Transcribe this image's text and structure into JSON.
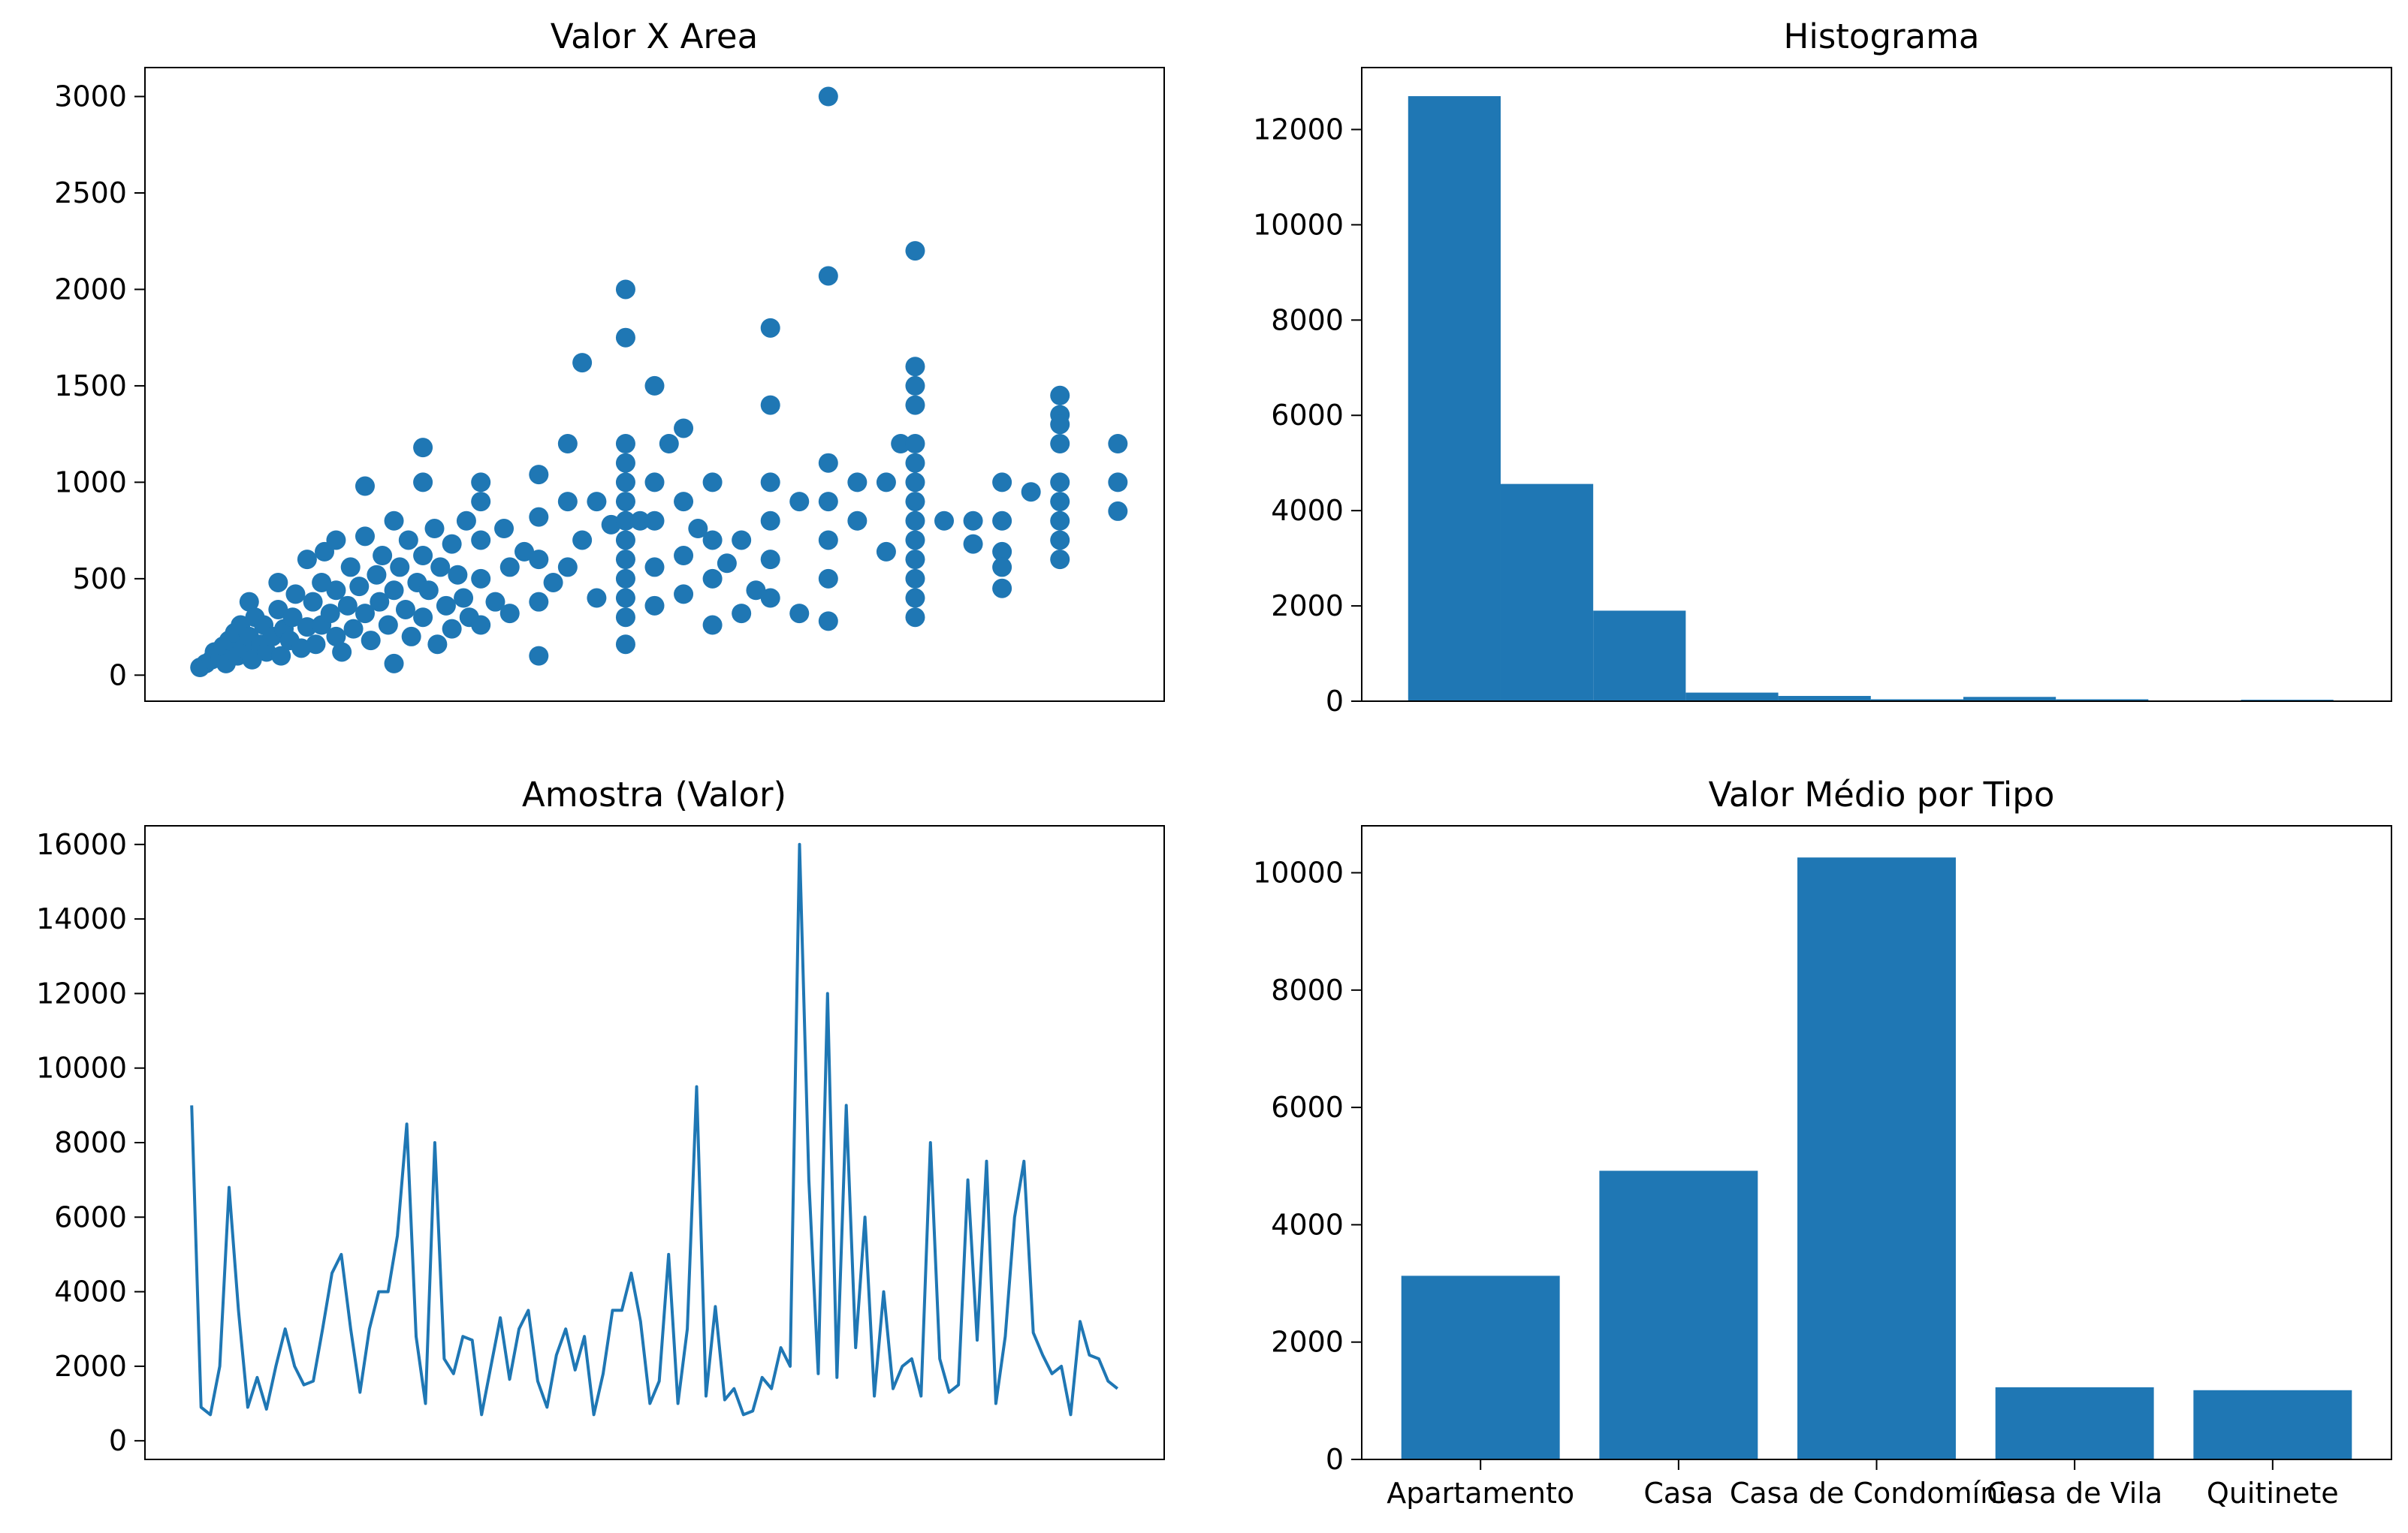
{
  "figure": {
    "background": "#ffffff",
    "accent": "#1f77b4"
  },
  "chart_data": [
    {
      "id": "scatter",
      "type": "scatter",
      "title": "Valor X Area",
      "xlabel": "",
      "ylabel": "",
      "xlim": [
        -1600,
        33600
      ],
      "ylim": [
        -135,
        3150
      ],
      "xticks": [
        0,
        5000,
        10000,
        15000,
        20000,
        25000,
        30000
      ],
      "yticks": [
        0,
        500,
        1000,
        1500,
        2000,
        2500,
        3000
      ],
      "color": "#1f77b4",
      "points": [
        [
          300,
          40
        ],
        [
          500,
          60
        ],
        [
          700,
          80
        ],
        [
          800,
          120
        ],
        [
          1000,
          90
        ],
        [
          1100,
          150
        ],
        [
          1200,
          60
        ],
        [
          1300,
          180
        ],
        [
          1500,
          220
        ],
        [
          1600,
          100
        ],
        [
          1700,
          260
        ],
        [
          1800,
          140
        ],
        [
          2000,
          200
        ],
        [
          2000,
          380
        ],
        [
          2100,
          80
        ],
        [
          2200,
          300
        ],
        [
          2400,
          160
        ],
        [
          2500,
          260
        ],
        [
          2600,
          120
        ],
        [
          2800,
          200
        ],
        [
          3000,
          340
        ],
        [
          3000,
          480
        ],
        [
          3100,
          100
        ],
        [
          3200,
          240
        ],
        [
          3400,
          180
        ],
        [
          3500,
          300
        ],
        [
          3600,
          420
        ],
        [
          3800,
          140
        ],
        [
          4000,
          250
        ],
        [
          4000,
          600
        ],
        [
          4200,
          380
        ],
        [
          4300,
          160
        ],
        [
          4500,
          480
        ],
        [
          4500,
          260
        ],
        [
          4600,
          640
        ],
        [
          4800,
          320
        ],
        [
          5000,
          200
        ],
        [
          5000,
          440
        ],
        [
          5000,
          700
        ],
        [
          5200,
          120
        ],
        [
          5400,
          360
        ],
        [
          5500,
          560
        ],
        [
          5600,
          240
        ],
        [
          5800,
          460
        ],
        [
          6000,
          320
        ],
        [
          6000,
          720
        ],
        [
          6000,
          980
        ],
        [
          6200,
          180
        ],
        [
          6400,
          520
        ],
        [
          6500,
          380
        ],
        [
          6600,
          620
        ],
        [
          6800,
          260
        ],
        [
          7000,
          440
        ],
        [
          7000,
          800
        ],
        [
          7000,
          60
        ],
        [
          7200,
          560
        ],
        [
          7400,
          340
        ],
        [
          7500,
          700
        ],
        [
          7600,
          200
        ],
        [
          7800,
          480
        ],
        [
          8000,
          620
        ],
        [
          8000,
          1180
        ],
        [
          8000,
          1000
        ],
        [
          8000,
          300
        ],
        [
          8200,
          440
        ],
        [
          8400,
          760
        ],
        [
          8500,
          160
        ],
        [
          8600,
          560
        ],
        [
          8800,
          360
        ],
        [
          9000,
          680
        ],
        [
          9000,
          240
        ],
        [
          9200,
          520
        ],
        [
          9400,
          400
        ],
        [
          9500,
          800
        ],
        [
          9600,
          300
        ],
        [
          10000,
          1000
        ],
        [
          10000,
          900
        ],
        [
          10000,
          700
        ],
        [
          10000,
          500
        ],
        [
          10000,
          260
        ],
        [
          10500,
          380
        ],
        [
          10800,
          760
        ],
        [
          11000,
          560
        ],
        [
          11000,
          320
        ],
        [
          11500,
          640
        ],
        [
          12000,
          1040
        ],
        [
          12000,
          820
        ],
        [
          12000,
          600
        ],
        [
          12000,
          380
        ],
        [
          12000,
          100
        ],
        [
          12500,
          480
        ],
        [
          13000,
          1200
        ],
        [
          13000,
          900
        ],
        [
          13000,
          560
        ],
        [
          13500,
          1620
        ],
        [
          13500,
          700
        ],
        [
          14000,
          900
        ],
        [
          14000,
          400
        ],
        [
          14500,
          780
        ],
        [
          15000,
          2000
        ],
        [
          15000,
          1750
        ],
        [
          15000,
          1200
        ],
        [
          15000,
          1100
        ],
        [
          15000,
          1000
        ],
        [
          15000,
          900
        ],
        [
          15000,
          800
        ],
        [
          15000,
          700
        ],
        [
          15000,
          600
        ],
        [
          15000,
          500
        ],
        [
          15000,
          400
        ],
        [
          15000,
          300
        ],
        [
          15000,
          160
        ],
        [
          15500,
          800
        ],
        [
          16000,
          1500
        ],
        [
          16000,
          1000
        ],
        [
          16000,
          800
        ],
        [
          16000,
          560
        ],
        [
          16000,
          360
        ],
        [
          16500,
          1200
        ],
        [
          17000,
          1280
        ],
        [
          17000,
          900
        ],
        [
          17000,
          620
        ],
        [
          17000,
          420
        ],
        [
          17500,
          760
        ],
        [
          18000,
          1000
        ],
        [
          18000,
          700
        ],
        [
          18000,
          500
        ],
        [
          18000,
          260
        ],
        [
          18500,
          580
        ],
        [
          19000,
          700
        ],
        [
          19000,
          320
        ],
        [
          19500,
          440
        ],
        [
          20000,
          1800
        ],
        [
          20000,
          1400
        ],
        [
          20000,
          1000
        ],
        [
          20000,
          800
        ],
        [
          20000,
          600
        ],
        [
          20000,
          400
        ],
        [
          21000,
          900
        ],
        [
          21000,
          320
        ],
        [
          22000,
          3000
        ],
        [
          22000,
          2070
        ],
        [
          22000,
          1100
        ],
        [
          22000,
          900
        ],
        [
          22000,
          700
        ],
        [
          22000,
          500
        ],
        [
          22000,
          280
        ],
        [
          23000,
          1000
        ],
        [
          23000,
          800
        ],
        [
          24000,
          1000
        ],
        [
          24000,
          640
        ],
        [
          24500,
          1200
        ],
        [
          25000,
          2200
        ],
        [
          25000,
          1600
        ],
        [
          25000,
          1500
        ],
        [
          25000,
          1400
        ],
        [
          25000,
          1200
        ],
        [
          25000,
          1100
        ],
        [
          25000,
          1000
        ],
        [
          25000,
          900
        ],
        [
          25000,
          800
        ],
        [
          25000,
          700
        ],
        [
          25000,
          600
        ],
        [
          25000,
          500
        ],
        [
          25000,
          400
        ],
        [
          25000,
          300
        ],
        [
          26000,
          800
        ],
        [
          27000,
          800
        ],
        [
          27000,
          680
        ],
        [
          28000,
          1000
        ],
        [
          28000,
          800
        ],
        [
          28000,
          640
        ],
        [
          28000,
          560
        ],
        [
          28000,
          450
        ],
        [
          29000,
          950
        ],
        [
          30000,
          1450
        ],
        [
          30000,
          1350
        ],
        [
          30000,
          1300
        ],
        [
          30000,
          1200
        ],
        [
          30000,
          1000
        ],
        [
          30000,
          900
        ],
        [
          30000,
          800
        ],
        [
          30000,
          700
        ],
        [
          30000,
          600
        ],
        [
          32000,
          1200
        ],
        [
          32000,
          1000
        ],
        [
          32000,
          850
        ]
      ]
    },
    {
      "id": "histogram",
      "type": "bar",
      "title": "Histograma",
      "xlabel": "",
      "ylabel": "",
      "xlim": [
        -1500,
        34000
      ],
      "ylim": [
        0,
        13300
      ],
      "xticks": [
        0,
        5000,
        10000,
        15000,
        20000,
        25000,
        30000
      ],
      "yticks": [
        0,
        2000,
        4000,
        6000,
        8000,
        10000,
        12000
      ],
      "color": "#1f77b4",
      "bin_edges": [
        100,
        3290,
        6480,
        9670,
        12860,
        16050,
        19240,
        22430,
        25620,
        28810,
        32000
      ],
      "values": [
        12700,
        4560,
        1900,
        180,
        110,
        40,
        90,
        40,
        10,
        30
      ]
    },
    {
      "id": "line",
      "type": "line",
      "title": "Amostra (Valor)",
      "xlabel": "",
      "ylabel": "",
      "xlim": [
        -5,
        104
      ],
      "ylim": [
        -500,
        16500
      ],
      "xticks": [
        0,
        20,
        40,
        60,
        80,
        100
      ],
      "yticks": [
        0,
        2000,
        4000,
        6000,
        8000,
        10000,
        12000,
        14000,
        16000
      ],
      "color": "#1f77b4",
      "values": [
        9000,
        900,
        700,
        2000,
        6800,
        3500,
        900,
        1700,
        850,
        2000,
        3000,
        2000,
        1500,
        1600,
        3000,
        4500,
        5000,
        3000,
        1300,
        3000,
        4000,
        4000,
        5500,
        8500,
        2800,
        1000,
        8000,
        2200,
        1800,
        2800,
        2700,
        700,
        2000,
        3300,
        1650,
        3000,
        3500,
        1600,
        900,
        2300,
        3000,
        1900,
        2800,
        700,
        1800,
        3500,
        3500,
        4500,
        3200,
        1000,
        1600,
        5000,
        1000,
        3000,
        9500,
        1200,
        3600,
        1100,
        1400,
        700,
        800,
        1700,
        1400,
        2500,
        2000,
        16000,
        7000,
        1800,
        12000,
        1700,
        9000,
        2500,
        6000,
        1200,
        4000,
        1400,
        2000,
        2200,
        1200,
        8000,
        2200,
        1300,
        1500,
        7000,
        2700,
        7500,
        1000,
        2800,
        6000,
        7500,
        2900,
        2300,
        1800,
        2000,
        700,
        3200,
        2300,
        2200,
        1600,
        1400
      ]
    },
    {
      "id": "bars",
      "type": "bar",
      "title": "Valor Médio por Tipo",
      "xlabel": "",
      "ylabel": "",
      "ylim": [
        0,
        10800
      ],
      "yticks": [
        0,
        2000,
        4000,
        6000,
        8000,
        10000
      ],
      "color": "#1f77b4",
      "categories": [
        "Apartamento",
        "Casa",
        "Casa de Condomínio",
        "Casa de Vila",
        "Quitinete"
      ],
      "values": [
        3130,
        4920,
        10260,
        1230,
        1180
      ]
    }
  ]
}
